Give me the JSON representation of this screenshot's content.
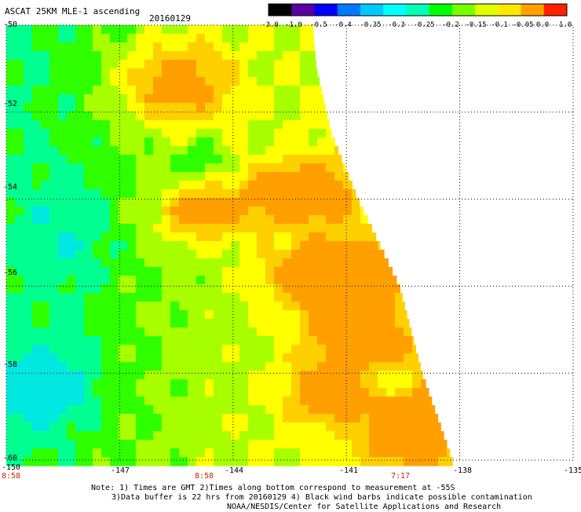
{
  "header": {
    "title": "ASCAT 25KM MLE-1 ascending",
    "date": "20160129"
  },
  "colorbar": {
    "labels": [
      "-3.0",
      "-1.0",
      "-0.5",
      "-0.4",
      "-0.35",
      "-0.3",
      "-0.25",
      "-0.2",
      "-0.15",
      "-0.1",
      "-0.05",
      "0.0",
      "1.0"
    ],
    "colors": [
      "#000000",
      "#5a00a0",
      "#0000ff",
      "#0078ff",
      "#00c8ff",
      "#00ffff",
      "#00ffb4",
      "#00ff00",
      "#78ff00",
      "#e0ff00",
      "#ffe800",
      "#ffa000",
      "#ff2000"
    ]
  },
  "axes": {
    "y_ticks": [
      "-50",
      "-52",
      "-54",
      "-56",
      "-58",
      "-60"
    ],
    "x_ticks": [
      "-150",
      "-147",
      "-144",
      "-141",
      "-138",
      "-135"
    ]
  },
  "times": [
    "8:58",
    "8:58",
    "7:17"
  ],
  "notes": [
    "Note: 1) Times are GMT 2)Times along bottom correspond to measurement at -55S",
    "3)Data buffer is 22 hrs from 20160129 4) Black wind barbs indicate possible contamination",
    "NOAA/NESDIS/Center for Satellite Applications and Research"
  ],
  "map_data": {
    "lon_range": [
      -150,
      -135
    ],
    "lat_range": [
      -60,
      -50
    ],
    "swath_east_edge": [
      {
        "lat": -50.0,
        "lon": -141.9
      },
      {
        "lat": -51.0,
        "lon": -141.8
      },
      {
        "lat": -52.5,
        "lon": -141.4
      },
      {
        "lat": -54.0,
        "lon": -140.7
      },
      {
        "lat": -56.0,
        "lon": -139.6
      },
      {
        "lat": -58.0,
        "lon": -139.0
      },
      {
        "lat": -60.0,
        "lon": -138.2
      }
    ],
    "legend_palette": [
      "#00e8e0",
      "#00ff90",
      "#30ff00",
      "#a8ff00",
      "#ffff00",
      "#ffd000",
      "#ffa000"
    ]
  }
}
